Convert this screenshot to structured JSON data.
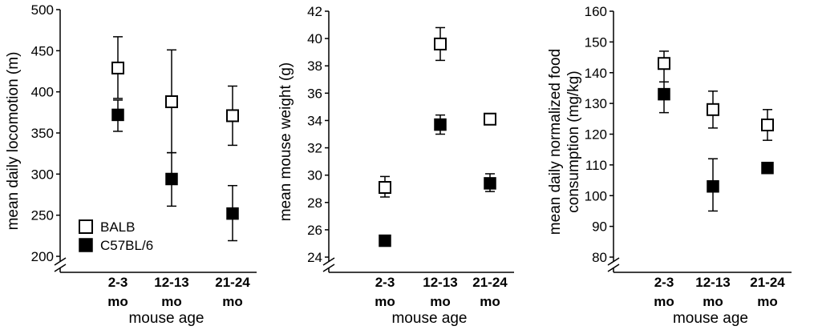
{
  "chart_data": [
    {
      "type": "scatter",
      "categories": [
        "2-3 mo",
        "12-13 mo",
        "21-24 mo"
      ],
      "ylabel": "mean daily locomotion (m)",
      "xlabel": "mouse age",
      "ylim": [
        200,
        500
      ],
      "yticks": [
        200,
        250,
        300,
        350,
        400,
        450,
        500
      ],
      "axis_break": true,
      "legend": {
        "placement": "bottom-left",
        "entries": [
          "BALB",
          "C57BL/6"
        ]
      },
      "series": [
        {
          "name": "BALB",
          "marker": "open-square",
          "values": [
            429,
            388,
            371
          ],
          "err_low": [
            392,
            326,
            335
          ],
          "err_high": [
            467,
            451,
            407
          ]
        },
        {
          "name": "C57BL/6",
          "marker": "filled-square",
          "values": [
            372,
            294,
            252
          ],
          "err_low": [
            352,
            261,
            219
          ],
          "err_high": [
            390,
            326,
            286
          ]
        }
      ]
    },
    {
      "type": "scatter",
      "categories": [
        "2-3 mo",
        "12-13 mo",
        "21-24 mo"
      ],
      "ylabel": "mean mouse weight (g)",
      "xlabel": "mouse age",
      "ylim": [
        24,
        42
      ],
      "yticks": [
        24,
        26,
        28,
        30,
        32,
        34,
        36,
        38,
        40,
        42
      ],
      "axis_break": true,
      "series": [
        {
          "name": "BALB",
          "marker": "open-square",
          "values": [
            29.1,
            39.6,
            34.1
          ],
          "err_low": [
            28.4,
            38.4,
            33.9
          ],
          "err_high": [
            29.9,
            40.8,
            34.3
          ]
        },
        {
          "name": "C57BL/6",
          "marker": "filled-square",
          "values": [
            25.2,
            33.7,
            29.4
          ],
          "err_low": [
            25.1,
            33.0,
            28.8
          ],
          "err_high": [
            25.3,
            34.4,
            30.1
          ]
        }
      ]
    },
    {
      "type": "scatter",
      "categories": [
        "2-3 mo",
        "12-13 mo",
        "21-24 mo"
      ],
      "ylabel": "mean daily normalized food consumption (mg/kg)",
      "ylabel_lines": [
        "mean daily normalized food",
        "consumption (mg/kg)"
      ],
      "xlabel": "mouse age",
      "ylim": [
        80,
        160
      ],
      "yticks": [
        80,
        90,
        100,
        110,
        120,
        130,
        140,
        150,
        160
      ],
      "axis_break": true,
      "series": [
        {
          "name": "BALB",
          "marker": "open-square",
          "values": [
            143,
            128,
            123
          ],
          "err_low": [
            137,
            122,
            118
          ],
          "err_high": [
            147,
            134,
            128
          ]
        },
        {
          "name": "C57BL/6",
          "marker": "filled-square",
          "values": [
            133,
            103,
            109
          ],
          "err_low": [
            127,
            95,
            108
          ],
          "err_high": [
            137,
            112,
            110
          ]
        }
      ]
    }
  ]
}
